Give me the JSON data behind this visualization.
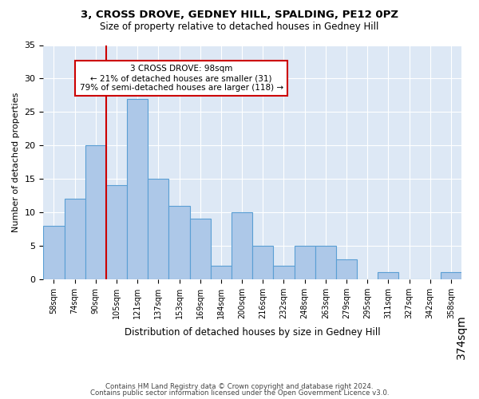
{
  "title1": "3, CROSS DROVE, GEDNEY HILL, SPALDING, PE12 0PZ",
  "title2": "Size of property relative to detached houses in Gedney Hill",
  "xlabel": "Distribution of detached houses by size in Gedney Hill",
  "ylabel": "Number of detached properties",
  "bin_labels": [
    "58sqm",
    "74sqm",
    "90sqm",
    "105sqm",
    "121sqm",
    "137sqm",
    "153sqm",
    "169sqm",
    "184sqm",
    "200sqm",
    "216sqm",
    "232sqm",
    "248sqm",
    "263sqm",
    "279sqm",
    "295sqm",
    "311sqm",
    "327sqm",
    "342sqm",
    "358sqm",
    "374sqm"
  ],
  "bar_heights": [
    8,
    12,
    20,
    14,
    27,
    15,
    11,
    9,
    2,
    10,
    5,
    2,
    5,
    5,
    3,
    0,
    1,
    0,
    0,
    1
  ],
  "bar_color": "#adc8e8",
  "bar_edge_color": "#5a9fd4",
  "vline_x": 2.5,
  "vline_color": "#cc0000",
  "annotation_text": "3 CROSS DROVE: 98sqm\n← 21% of detached houses are smaller (31)\n79% of semi-detached houses are larger (118) →",
  "annotation_box_color": "#ffffff",
  "annotation_box_edge": "#cc0000",
  "ylim": [
    0,
    35
  ],
  "yticks": [
    0,
    5,
    10,
    15,
    20,
    25,
    30,
    35
  ],
  "footer1": "Contains HM Land Registry data © Crown copyright and database right 2024.",
  "footer2": "Contains public sector information licensed under the Open Government Licence v3.0.",
  "plot_bg_color": "#dde8f5"
}
